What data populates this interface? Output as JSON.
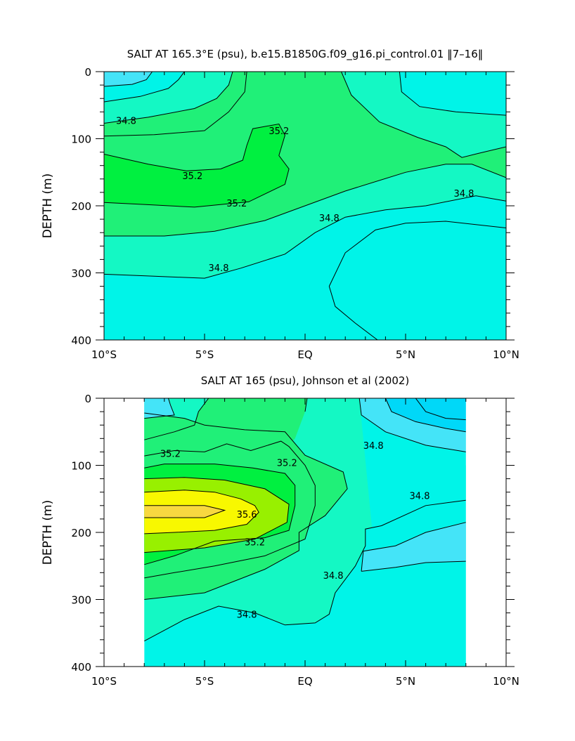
{
  "chart_data": [
    {
      "type": "heatmap",
      "title": "SALT AT 165.3°E (psu), b.e15.B1850G.f09_g16.pi_control.01 ‖7–16‖",
      "xlabel": "",
      "ylabel": "DEPTH (m)",
      "xlim": [
        -10,
        10
      ],
      "ylim": [
        400,
        0
      ],
      "x_ticks": [
        -10,
        -5,
        0,
        5,
        10
      ],
      "x_tick_labels": [
        "10°S",
        "5°S",
        "EQ",
        "5°N",
        "10°N"
      ],
      "y_ticks": [
        0,
        100,
        200,
        300,
        400
      ],
      "y_tick_labels": [
        "0",
        "100",
        "200",
        "300",
        "400"
      ],
      "data_extent_x": [
        -10,
        10
      ],
      "colors": {
        "34.4": "#44e4f8",
        "34.6": "#00f4e8",
        "34.8": "#14f8c4",
        "35.0": "#20f078",
        "35.2": "#00f040"
      },
      "contour_labels": [
        {
          "text": "34.8",
          "lat": -8.9,
          "depth": 73
        },
        {
          "text": "35.2",
          "lat": -5.6,
          "depth": 155
        },
        {
          "text": "35.2",
          "lat": -1.3,
          "depth": 88
        },
        {
          "text": "35.2",
          "lat": -3.4,
          "depth": 196
        },
        {
          "text": "34.8",
          "lat": 1.2,
          "depth": 218
        },
        {
          "text": "34.8",
          "lat": 7.9,
          "depth": 181
        },
        {
          "text": "34.8",
          "lat": -4.3,
          "depth": 292
        }
      ],
      "contours": [
        {
          "level": 34.4,
          "points": [
            [
              -10,
              22
            ],
            [
              -8.6,
              19
            ],
            [
              -7.9,
              12
            ],
            [
              -7.6,
              0
            ]
          ]
        },
        {
          "level": 34.6,
          "points": [
            [
              -10,
              45
            ],
            [
              -8.2,
              37
            ],
            [
              -6.8,
              25
            ],
            [
              -6.3,
              12
            ],
            [
              -6.0,
              0
            ]
          ]
        },
        {
          "level": 34.8,
          "points": [
            [
              -10,
              77
            ],
            [
              -7.8,
              68
            ],
            [
              -5.5,
              55
            ],
            [
              -4.4,
              40
            ],
            [
              -3.8,
              20
            ],
            [
              -3.6,
              0
            ]
          ]
        },
        {
          "level": 35.0,
          "points": [
            [
              -10,
              96
            ],
            [
              -7.5,
              94
            ],
            [
              -5.0,
              88
            ],
            [
              -3.8,
              60
            ],
            [
              -3.0,
              30
            ],
            [
              -2.9,
              0
            ]
          ]
        },
        {
          "level": 35.2,
          "points": [
            [
              -10,
              123
            ],
            [
              -7.8,
              138
            ],
            [
              -5.9,
              148
            ],
            [
              -4.2,
              145
            ],
            [
              -3.1,
              132
            ],
            [
              -2.9,
              110
            ],
            [
              -2.6,
              85
            ],
            [
              -1.3,
              78
            ],
            [
              -1.0,
              95
            ],
            [
              -1.3,
              125
            ],
            [
              -0.8,
              145
            ],
            [
              -1.0,
              168
            ],
            [
              -2.8,
              194
            ],
            [
              -5.5,
              202
            ],
            [
              -8.0,
              198
            ],
            [
              -10,
              195
            ]
          ]
        },
        {
          "level": 35.0,
          "points": [
            [
              -10,
              245
            ],
            [
              -7.0,
              245
            ],
            [
              -4.5,
              238
            ],
            [
              -2.0,
              222
            ],
            [
              0,
              200
            ],
            [
              2.0,
              178
            ],
            [
              5.0,
              150
            ],
            [
              7.0,
              138
            ],
            [
              8.3,
              138
            ],
            [
              10,
              158
            ]
          ]
        },
        {
          "level": 35.0,
          "points": [
            [
              1.8,
              0
            ],
            [
              2.3,
              35
            ],
            [
              3.7,
              75
            ],
            [
              5.6,
              98
            ],
            [
              7.0,
              112
            ],
            [
              7.8,
              128
            ],
            [
              8.6,
              122
            ],
            [
              10,
              112
            ]
          ]
        },
        {
          "level": 34.8,
          "points": [
            [
              -10,
              302
            ],
            [
              -7.5,
              305
            ],
            [
              -5.0,
              308
            ],
            [
              -3.2,
              293
            ],
            [
              -1.0,
              272
            ],
            [
              0.5,
              240
            ],
            [
              2.0,
              217
            ],
            [
              4.0,
              206
            ],
            [
              6.0,
              200
            ],
            [
              8.5,
              185
            ],
            [
              10,
              193
            ]
          ]
        },
        {
          "level": 34.6,
          "points": [
            [
              1.2,
              320
            ],
            [
              2.0,
              270
            ],
            [
              3.5,
              236
            ],
            [
              5.0,
              226
            ],
            [
              7.0,
              223
            ],
            [
              10,
              233
            ]
          ]
        },
        {
          "level": 34.6,
          "points": [
            [
              1.2,
              320
            ],
            [
              1.5,
              350
            ],
            [
              2.5,
              375
            ],
            [
              3.6,
              400
            ]
          ]
        },
        {
          "level": 34.6,
          "points": [
            [
              4.7,
              0
            ],
            [
              4.8,
              30
            ],
            [
              5.7,
              52
            ],
            [
              7.5,
              60
            ],
            [
              10,
              65
            ]
          ]
        }
      ],
      "fill_bands": [
        {
          "level": 34.6,
          "color": "#00f4e8",
          "desc": "deep background"
        },
        {
          "level": 34.8,
          "color": "#14f8c4",
          "desc": "between 34.6 and 34.8 contours"
        },
        {
          "level": 35.0,
          "color": "#20f078",
          "desc": "between 34.8 and 35.0 contours"
        },
        {
          "level": 35.2,
          "color": "#00f040",
          "desc": "inside 35.2 contour"
        }
      ]
    },
    {
      "type": "heatmap",
      "title": "SALT AT 165 (psu), Johnson et al (2002)",
      "xlabel": "",
      "ylabel": "DEPTH (m)",
      "xlim": [
        -10,
        10
      ],
      "ylim": [
        400,
        0
      ],
      "x_ticks": [
        -10,
        -5,
        0,
        5,
        10
      ],
      "x_tick_labels": [
        "10°S",
        "5°S",
        "EQ",
        "5°N",
        "10°N"
      ],
      "y_ticks": [
        0,
        100,
        200,
        300,
        400
      ],
      "y_tick_labels": [
        "0",
        "100",
        "200",
        "300",
        "400"
      ],
      "data_extent_x": [
        -8,
        8
      ],
      "colors": {
        "34.2": "#00d8f8",
        "34.4": "#44e4f8",
        "34.6": "#00f4e8",
        "34.8": "#14f8c4",
        "35.0": "#20f078",
        "35.2": "#00f040",
        "35.4": "#98f000",
        "35.6": "#f8f800",
        "35.8": "#f8d840"
      },
      "contour_labels": [
        {
          "text": "35.2",
          "lat": -6.7,
          "depth": 82
        },
        {
          "text": "35.2",
          "lat": -0.9,
          "depth": 96
        },
        {
          "text": "34.8",
          "lat": 3.4,
          "depth": 70
        },
        {
          "text": "34.8",
          "lat": 5.7,
          "depth": 145
        },
        {
          "text": "35.6",
          "lat": -2.9,
          "depth": 173
        },
        {
          "text": "35.2",
          "lat": -2.5,
          "depth": 214
        },
        {
          "text": "34.8",
          "lat": 1.4,
          "depth": 264
        },
        {
          "text": "34.8",
          "lat": -2.9,
          "depth": 322
        }
      ],
      "contours": [
        {
          "level": 35.8,
          "points": [
            [
              -8,
              160
            ],
            [
              -5.0,
              160
            ],
            [
              -4.0,
              167
            ],
            [
              -5.0,
              178
            ],
            [
              -8,
              178
            ]
          ]
        },
        {
          "level": 35.6,
          "points": [
            [
              -8,
              140
            ],
            [
              -6.0,
              137
            ],
            [
              -4.5,
              140
            ],
            [
              -3.2,
              150
            ],
            [
              -2.5,
              160
            ],
            [
              -2.3,
              170
            ],
            [
              -2.9,
              188
            ],
            [
              -4.5,
              197
            ],
            [
              -6.5,
              200
            ],
            [
              -8,
              202
            ]
          ]
        },
        {
          "level": 35.4,
          "points": [
            [
              -8,
              120
            ],
            [
              -6.0,
              118
            ],
            [
              -4.0,
              122
            ],
            [
              -2.0,
              135
            ],
            [
              -0.8,
              158
            ],
            [
              -0.9,
              185
            ],
            [
              -2.5,
              210
            ],
            [
              -5.0,
              223
            ],
            [
              -8,
              230
            ]
          ]
        },
        {
          "level": 35.2,
          "points": [
            [
              -8,
              104
            ],
            [
              -7.0,
              98
            ],
            [
              -4.5,
              98
            ],
            [
              -2.6,
              104
            ],
            [
              -1.0,
              112
            ],
            [
              -0.5,
              130
            ],
            [
              -0.5,
              160
            ],
            [
              -0.8,
              197
            ],
            [
              -2.0,
              208
            ],
            [
              -4.5,
              213
            ],
            [
              -6.5,
              235
            ],
            [
              -8,
              248
            ]
          ]
        },
        {
          "level": 35.0,
          "points": [
            [
              -8,
              86
            ],
            [
              -6.5,
              78
            ],
            [
              -5.0,
              80
            ],
            [
              -3.9,
              68
            ],
            [
              -2.7,
              78
            ],
            [
              -1.2,
              64
            ],
            [
              -0.8,
              72
            ],
            [
              0.0,
              100
            ],
            [
              0.5,
              130
            ],
            [
              0.5,
              160
            ],
            [
              0.0,
              210
            ],
            [
              -2.0,
              235
            ],
            [
              -4.5,
              250
            ],
            [
              -6.5,
              260
            ],
            [
              -8,
              268
            ]
          ]
        },
        {
          "level": 34.8,
          "points": [
            [
              -8,
              300
            ],
            [
              -5.0,
              290
            ],
            [
              -2.0,
              255
            ],
            [
              -0.3,
              227
            ],
            [
              -0.3,
              200
            ],
            [
              1.0,
              175
            ],
            [
              2.1,
              135
            ],
            [
              1.9,
              110
            ],
            [
              0.0,
              85
            ],
            [
              -1.0,
              50
            ],
            [
              -3.0,
              47
            ],
            [
              -5.0,
              40
            ],
            [
              -6.0,
              30
            ],
            [
              -8,
              22
            ]
          ]
        },
        {
          "level": 34.6,
          "points": [
            [
              -8,
              362
            ],
            [
              -6.0,
              330
            ],
            [
              -4.3,
              310
            ],
            [
              -2.5,
              320
            ],
            [
              -1.0,
              338
            ],
            [
              0.5,
              335
            ],
            [
              1.2,
              322
            ],
            [
              1.5,
              290
            ],
            [
              2.5,
              250
            ],
            [
              3.0,
              220
            ],
            [
              3.0,
              195
            ],
            [
              3.8,
              190
            ],
            [
              6.0,
              160
            ],
            [
              8,
              152
            ]
          ]
        },
        {
          "level": 34.6,
          "points": [
            [
              0.0,
              20
            ],
            [
              0.1,
              0
            ]
          ]
        },
        {
          "level": 34.6,
          "points": [
            [
              -8,
              62
            ],
            [
              -6.5,
              50
            ],
            [
              -5.5,
              40
            ],
            [
              -5.3,
              20
            ],
            [
              -4.8,
              0
            ]
          ]
        },
        {
          "level": 34.4,
          "points": [
            [
              2.8,
              258
            ],
            [
              2.9,
              228
            ],
            [
              4.5,
              220
            ],
            [
              6.0,
              200
            ],
            [
              8,
              185
            ]
          ]
        },
        {
          "level": 34.4,
          "points": [
            [
              2.8,
              258
            ],
            [
              4.5,
              252
            ],
            [
              6.0,
              245
            ],
            [
              8,
              243
            ]
          ]
        },
        {
          "level": 34.4,
          "points": [
            [
              2.7,
              0
            ],
            [
              2.8,
              25
            ],
            [
              4.0,
              50
            ],
            [
              6.0,
              70
            ],
            [
              8,
              80
            ]
          ]
        },
        {
          "level": 34.2,
          "points": [
            [
              4.0,
              0
            ],
            [
              4.3,
              20
            ],
            [
              5.5,
              35
            ],
            [
              7.0,
              45
            ],
            [
              8,
              50
            ]
          ]
        },
        {
          "level": 34.0,
          "points": [
            [
              5.5,
              0
            ],
            [
              6.0,
              20
            ],
            [
              7.0,
              30
            ],
            [
              8,
              32
            ]
          ]
        },
        {
          "level": 34.0,
          "points": [
            [
              -8,
              30
            ],
            [
              -6.5,
              25
            ],
            [
              -6.7,
              10
            ],
            [
              -6.8,
              0
            ]
          ]
        }
      ]
    }
  ]
}
